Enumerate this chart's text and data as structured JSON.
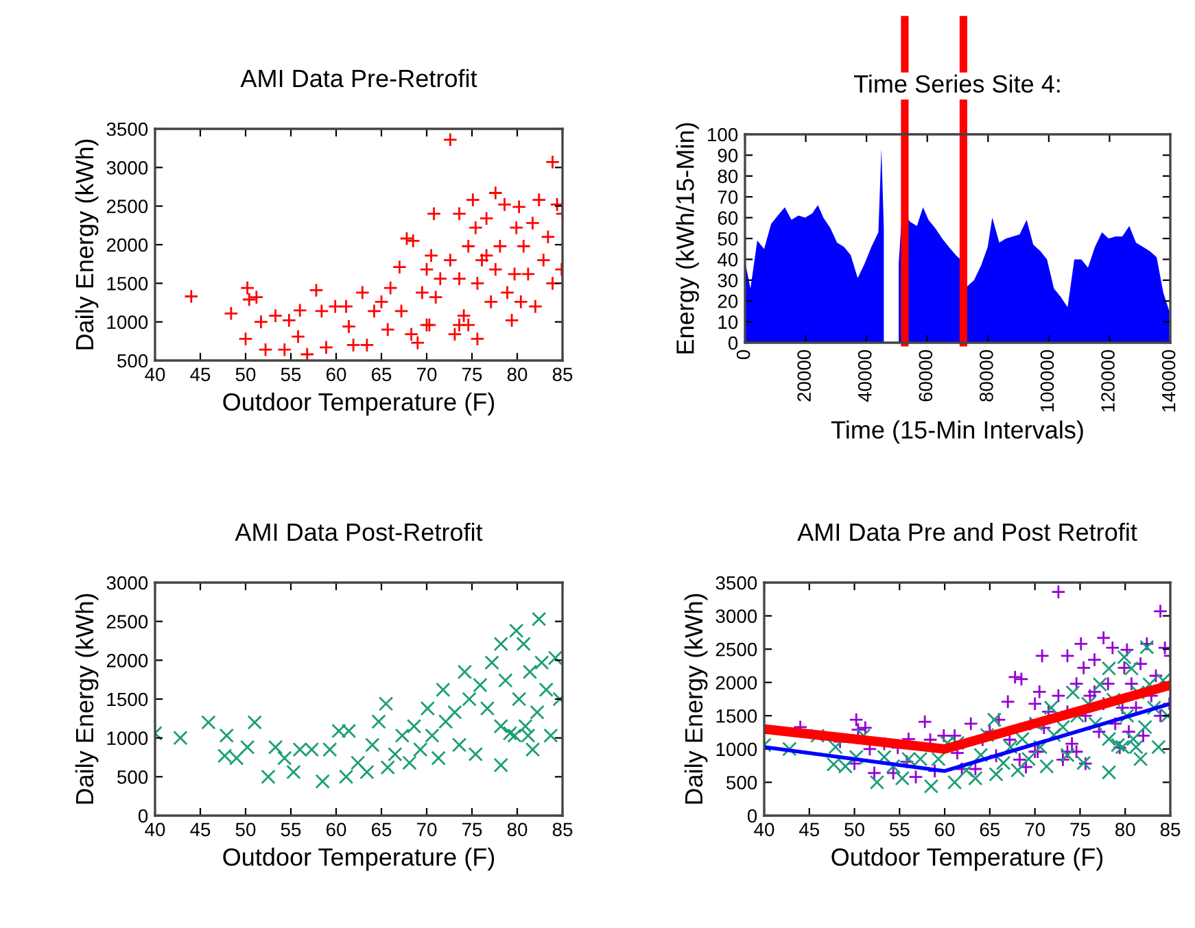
{
  "chart_data": [
    {
      "type": "scatter",
      "title": "AMI Data Pre-Retrofit",
      "xlabel": "Outdoor Temperature (F)",
      "ylabel": "Daily Energy (kWh)",
      "xlim": [
        40,
        85
      ],
      "ylim": [
        500,
        3500
      ],
      "xticks": [
        40,
        45,
        50,
        55,
        60,
        65,
        70,
        75,
        80,
        85
      ],
      "yticks": [
        500,
        1000,
        1500,
        2000,
        2500,
        3000,
        3500
      ],
      "grid": false,
      "marker": "plus",
      "series": [
        {
          "color": "#ff0000",
          "x": [
            44,
            48.4,
            50,
            50.2,
            50.4,
            51.2,
            51.7,
            52.2,
            53.3,
            54.3,
            54.8,
            55.8,
            56,
            56.8,
            57.8,
            58.4,
            58.9,
            59.9,
            61.1,
            61.4,
            61.9,
            62.9,
            63.4,
            64.2,
            65,
            65.7,
            66,
            67,
            67.8,
            68.5,
            67.2,
            68.3,
            69,
            69.5,
            70,
            70.5,
            70.8,
            70.3,
            71,
            71.5,
            72.6,
            72.6,
            73.1,
            73.6,
            73.6,
            74.1,
            74.6,
            74.6,
            75.1,
            75.4,
            75.6,
            76.1,
            76.6,
            77.1,
            77.6,
            77.6,
            78.1,
            78.6,
            78.9,
            79.4,
            79.7,
            79.9,
            80.2,
            80.4,
            80.7,
            81.2,
            81.7,
            82,
            82.4,
            82.9,
            83.4,
            83.9,
            83.9,
            84.4,
            84.9,
            85,
            70,
            73.6,
            76.6,
            75.6
          ],
          "values": [
            1330,
            1110,
            780,
            1440,
            1290,
            1320,
            1000,
            640,
            1080,
            640,
            1020,
            810,
            1150,
            580,
            1410,
            1140,
            670,
            1200,
            1200,
            940,
            700,
            1380,
            700,
            1140,
            1260,
            900,
            1440,
            1710,
            2080,
            2050,
            1140,
            840,
            730,
            1380,
            1680,
            1860,
            2400,
            960,
            1320,
            1560,
            3360,
            1800,
            840,
            2400,
            1560,
            1080,
            1980,
            960,
            2580,
            2220,
            1500,
            1800,
            2340,
            1260,
            2670,
            1680,
            1980,
            2520,
            1380,
            1020,
            1620,
            2220,
            2490,
            1260,
            1980,
            1620,
            2280,
            1200,
            2580,
            1800,
            2100,
            3070,
            1500,
            2520,
            1680,
            2400,
            960,
            960,
            1860,
            780
          ]
        }
      ]
    },
    {
      "type": "area",
      "title": "Time Series Site 4:",
      "xlabel": "Time (15-Min Intervals)",
      "ylabel": "Energy (kWh/15-Min)",
      "xlim": [
        0,
        140000
      ],
      "ylim": [
        0,
        100
      ],
      "xticks": [
        0,
        20000,
        40000,
        60000,
        80000,
        100000,
        120000,
        140000
      ],
      "yticks": [
        0,
        10,
        20,
        30,
        40,
        50,
        60,
        70,
        80,
        90,
        100
      ],
      "grid": false,
      "ref_lines": [
        {
          "axis": "x",
          "value": 52600,
          "color": "#ff0000"
        },
        {
          "axis": "x",
          "value": 71900,
          "color": "#ff0000"
        }
      ],
      "series": [
        {
          "color": "#0000ff",
          "x": [
            0,
            1800,
            4050,
            6300,
            8600,
            10800,
            13100,
            15300,
            17600,
            19800,
            22100,
            24000,
            25800,
            28100,
            30300,
            32600,
            34800,
            37100,
            39400,
            41600,
            43900,
            44900,
            45700,
            48000,
            50600,
            51700,
            54400,
            56600,
            58600,
            60400,
            62600,
            64900,
            67100,
            69400,
            71600,
            73100,
            75400,
            77700,
            79900,
            81400,
            83700,
            85900,
            88200,
            90400,
            92700,
            94900,
            97200,
            99400,
            101700,
            103900,
            106200,
            108400,
            110700,
            112900,
            115200,
            117500,
            119700,
            122000,
            124200,
            126500,
            128700,
            131000,
            133200,
            135500,
            137700,
            139700
          ],
          "values": [
            39,
            26,
            49,
            45,
            57,
            61,
            65,
            59,
            61,
            60,
            62,
            66,
            60,
            55,
            48,
            46,
            42,
            31,
            38,
            46,
            53,
            93,
            55,
            null,
            38,
            63,
            58,
            56,
            65,
            59,
            55,
            50,
            46,
            42,
            39,
            27,
            30,
            37,
            46,
            60,
            48,
            50,
            51,
            52,
            59,
            47,
            44,
            40,
            26,
            22,
            17,
            40,
            40,
            36,
            46,
            53,
            50,
            51,
            51,
            56,
            48,
            46,
            44,
            41,
            24,
            15
          ]
        }
      ]
    },
    {
      "type": "scatter",
      "title": "AMI Data Post-Retrofit",
      "xlabel": "Outdoor Temperature (F)",
      "ylabel": "Daily Energy (kWh)",
      "xlim": [
        40,
        85
      ],
      "ylim": [
        0,
        3000
      ],
      "xticks": [
        40,
        45,
        50,
        55,
        60,
        65,
        70,
        75,
        80,
        85
      ],
      "yticks": [
        0,
        500,
        1000,
        1500,
        2000,
        2500,
        3000
      ],
      "grid": false,
      "marker": "cross",
      "series": [
        {
          "color": "#1a9e77",
          "x": [
            40,
            42.8,
            45.9,
            47.9,
            47.7,
            49,
            50.2,
            51,
            52.5,
            53.3,
            54.3,
            55.3,
            56,
            57.3,
            58.5,
            59.3,
            60.3,
            61.4,
            61.1,
            62.4,
            63.4,
            64,
            64.7,
            65.5,
            65.7,
            66.5,
            67.3,
            68.1,
            68.6,
            69.3,
            70.1,
            70.6,
            71.3,
            71.8,
            72.1,
            73.1,
            73.6,
            74.2,
            74.7,
            75.4,
            75.9,
            76.7,
            77.2,
            78.2,
            78.2,
            78.7,
            79.2,
            79.9,
            80.2,
            80.7,
            80.9,
            81.4,
            81.7,
            82.2,
            82.4,
            82.7,
            83.2,
            83.7,
            84.2,
            84.7,
            78.2,
            79.7,
            81.2
          ],
          "values": [
            1060,
            1000,
            1200,
            1030,
            770,
            740,
            880,
            1200,
            500,
            880,
            740,
            560,
            850,
            850,
            440,
            850,
            1090,
            1090,
            500,
            680,
            560,
            910,
            1210,
            1440,
            620,
            790,
            1030,
            680,
            1150,
            850,
            1380,
            1030,
            740,
            1620,
            1210,
            1330,
            910,
            1850,
            1500,
            790,
            1680,
            1380,
            1970,
            650,
            2210,
            1740,
            1060,
            2380,
            1500,
            2210,
            1150,
            1850,
            850,
            1330,
            2530,
            1970,
            1620,
            1030,
            2030,
            1500,
            1150,
            1030,
            1030
          ]
        }
      ]
    },
    {
      "type": "scatter",
      "title": "AMI Data Pre and Post Retrofit",
      "xlabel": "Outdoor Temperature (F)",
      "ylabel": "Daily Energy (kWh)",
      "xlim": [
        40,
        85
      ],
      "ylim": [
        0,
        3500
      ],
      "xticks": [
        40,
        45,
        50,
        55,
        60,
        65,
        70,
        75,
        80,
        85
      ],
      "yticks": [
        0,
        500,
        1000,
        1500,
        2000,
        2500,
        3000,
        3500
      ],
      "grid": false,
      "series": [
        {
          "color": "#9400d3",
          "marker": "plus",
          "x": [
            44,
            48.4,
            50,
            50.2,
            50.4,
            51.2,
            51.7,
            52.2,
            53.3,
            54.3,
            54.8,
            55.8,
            56,
            56.8,
            57.8,
            58.4,
            58.9,
            59.9,
            61.1,
            61.4,
            61.9,
            62.9,
            63.4,
            64.2,
            65,
            65.7,
            66,
            67,
            67.8,
            68.5,
            67.2,
            68.3,
            69,
            69.5,
            70,
            70.5,
            70.8,
            70.3,
            71,
            71.5,
            72.6,
            72.6,
            73.1,
            73.6,
            73.6,
            74.1,
            74.6,
            74.6,
            75.1,
            75.4,
            75.6,
            76.1,
            76.6,
            77.1,
            77.6,
            77.6,
            78.1,
            78.6,
            78.9,
            79.4,
            79.7,
            79.9,
            80.2,
            80.4,
            80.7,
            81.2,
            81.7,
            82,
            82.4,
            82.9,
            83.4,
            83.9,
            83.9,
            84.4,
            84.9,
            85,
            70,
            73.6,
            76.6,
            75.6
          ],
          "values": [
            1330,
            1110,
            780,
            1440,
            1290,
            1320,
            1000,
            640,
            1080,
            640,
            1020,
            810,
            1150,
            580,
            1410,
            1140,
            670,
            1200,
            1200,
            940,
            700,
            1380,
            700,
            1140,
            1260,
            900,
            1440,
            1710,
            2080,
            2050,
            1140,
            840,
            730,
            1380,
            1680,
            1860,
            2400,
            960,
            1320,
            1560,
            3360,
            1800,
            840,
            2400,
            1560,
            1080,
            1980,
            960,
            2580,
            2220,
            1500,
            1800,
            2340,
            1260,
            2670,
            1680,
            1980,
            2520,
            1380,
            1020,
            1620,
            2220,
            2490,
            1260,
            1980,
            1620,
            2280,
            1200,
            2580,
            1800,
            2100,
            3070,
            1500,
            2520,
            1680,
            2400,
            960,
            960,
            1860,
            780
          ]
        },
        {
          "color": "#1a9e77",
          "marker": "cross",
          "x": [
            40,
            42.8,
            45.9,
            47.9,
            47.7,
            49,
            50.2,
            51,
            52.5,
            53.3,
            54.3,
            55.3,
            56,
            57.3,
            58.5,
            59.3,
            60.3,
            61.4,
            61.1,
            62.4,
            63.4,
            64,
            64.7,
            65.5,
            65.7,
            66.5,
            67.3,
            68.1,
            68.6,
            69.3,
            70.1,
            70.6,
            71.3,
            71.8,
            72.1,
            73.1,
            73.6,
            74.2,
            74.7,
            75.4,
            75.9,
            76.7,
            77.2,
            78.2,
            78.2,
            78.7,
            79.2,
            79.9,
            80.2,
            80.7,
            80.9,
            81.4,
            81.7,
            82.2,
            82.4,
            82.7,
            83.2,
            83.7,
            84.2,
            84.7,
            78.2,
            79.7,
            81.2
          ],
          "values": [
            1060,
            1000,
            1200,
            1030,
            770,
            740,
            880,
            1200,
            500,
            880,
            740,
            560,
            850,
            850,
            440,
            850,
            1090,
            1090,
            500,
            680,
            560,
            910,
            1210,
            1440,
            620,
            790,
            1030,
            680,
            1150,
            850,
            1380,
            1030,
            740,
            1620,
            1210,
            1330,
            910,
            1850,
            1500,
            790,
            1680,
            1380,
            1970,
            650,
            2210,
            1740,
            1060,
            2380,
            1500,
            2210,
            1150,
            1850,
            850,
            1330,
            2530,
            1970,
            1620,
            1030,
            2030,
            1500,
            1150,
            1030,
            1030
          ]
        },
        {
          "type": "line",
          "color": "#ff0000",
          "marker": "none",
          "x": [
            40,
            60,
            85
          ],
          "values": [
            1300,
            1000,
            1960
          ]
        },
        {
          "type": "line",
          "color": "#0000ff",
          "marker": "none",
          "x": [
            40,
            60,
            85
          ],
          "values": [
            1030,
            670,
            1680
          ]
        }
      ]
    }
  ]
}
